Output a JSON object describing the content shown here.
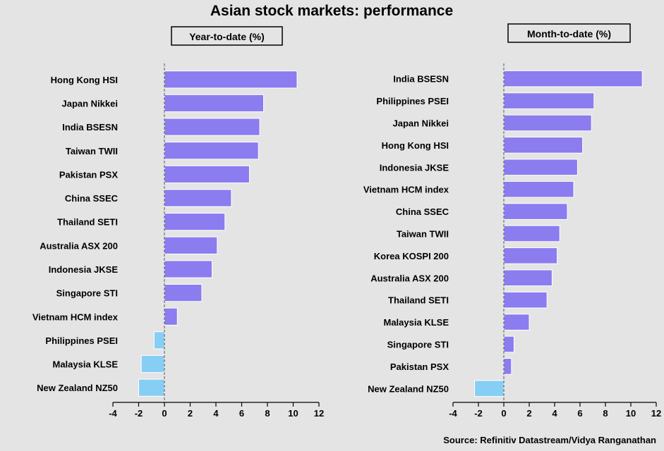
{
  "title": "Asian stock markets: performance",
  "source": "Source: Refinitiv Datastream/Vidya Ranganathan",
  "colors": {
    "background": "#e4e4e4",
    "positive_bar": "#8b7cf0",
    "negative_bar": "#87cef5",
    "axis": "#000000",
    "zero_line": "#707070"
  },
  "chart_data": [
    {
      "type": "bar",
      "orientation": "horizontal",
      "title": "Year-to-date (%)",
      "categories": [
        "Hong Kong HSI",
        "Japan Nikkei",
        "India BSESN",
        "Taiwan TWII",
        "Pakistan PSX",
        "China SSEC",
        "Thailand SETI",
        "Australia ASX 200",
        "Indonesia JKSE",
        "Singapore STI",
        "Vietnam HCM index",
        "Philippines PSEI",
        "Malaysia KLSE",
        "New Zealand NZ50"
      ],
      "values": [
        10.3,
        7.7,
        7.4,
        7.3,
        6.6,
        5.2,
        4.7,
        4.1,
        3.7,
        2.9,
        1.0,
        -0.8,
        -1.8,
        -2.0
      ],
      "xlim": [
        -4,
        12
      ],
      "xticks": [
        "-4",
        "-2",
        "0",
        "2",
        "4",
        "6",
        "8",
        "10",
        "12"
      ]
    },
    {
      "type": "bar",
      "orientation": "horizontal",
      "title": "Month-to-date (%)",
      "categories": [
        "India BSESN",
        "Philippines PSEI",
        "Japan Nikkei",
        "Hong Kong HSI",
        "Indonesia JKSE",
        "Vietnam HCM index",
        "China SSEC",
        "Taiwan TWII",
        "Korea KOSPI 200",
        "Australia ASX 200",
        "Thailand SETI",
        "Malaysia KLSE",
        "Singapore STI",
        "Pakistan PSX",
        "New Zealand NZ50"
      ],
      "values": [
        10.9,
        7.1,
        6.9,
        6.2,
        5.8,
        5.5,
        5.0,
        4.4,
        4.2,
        3.8,
        3.4,
        2.0,
        0.8,
        0.6,
        -2.3
      ],
      "xlim": [
        -4,
        12
      ],
      "xticks": [
        "-4",
        "-2",
        "0",
        "2",
        "4",
        "6",
        "8",
        "10",
        "12"
      ]
    }
  ]
}
